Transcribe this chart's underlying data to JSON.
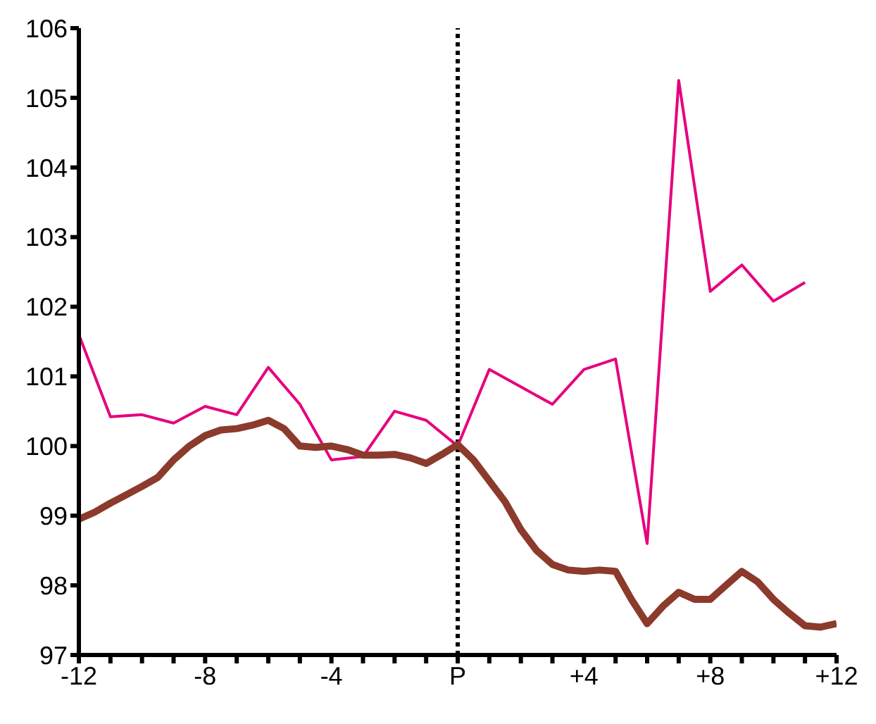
{
  "chart_data": {
    "type": "line",
    "grid": false,
    "legend": false,
    "marker": "none",
    "xlim": [
      -12,
      12
    ],
    "xticks": [
      {
        "value": -12,
        "label": "-12"
      },
      {
        "value": -11,
        "label": null
      },
      {
        "value": -10,
        "label": null
      },
      {
        "value": -9,
        "label": null
      },
      {
        "value": -8,
        "label": "-8"
      },
      {
        "value": -7,
        "label": null
      },
      {
        "value": -6,
        "label": null
      },
      {
        "value": -5,
        "label": null
      },
      {
        "value": -4,
        "label": "-4"
      },
      {
        "value": -3,
        "label": null
      },
      {
        "value": -2,
        "label": null
      },
      {
        "value": -1,
        "label": null
      },
      {
        "value": 0,
        "label": "P"
      },
      {
        "value": 1,
        "label": null
      },
      {
        "value": 2,
        "label": null
      },
      {
        "value": 3,
        "label": null
      },
      {
        "value": 4,
        "label": "+4"
      },
      {
        "value": 5,
        "label": null
      },
      {
        "value": 6,
        "label": null
      },
      {
        "value": 7,
        "label": null
      },
      {
        "value": 8,
        "label": "+8"
      },
      {
        "value": 9,
        "label": null
      },
      {
        "value": 10,
        "label": null
      },
      {
        "value": 11,
        "label": null
      },
      {
        "value": 12,
        "label": "+12"
      }
    ],
    "ylim": [
      97,
      106
    ],
    "yticks": [
      97,
      98,
      99,
      100,
      101,
      102,
      103,
      104,
      105,
      106
    ],
    "ref_lines": [
      {
        "axis": "x",
        "value": 0,
        "color": "#000000",
        "line_style": "dotted"
      }
    ],
    "series": [
      {
        "color": "#e6007e",
        "line_style": "solid",
        "x": [
          -12,
          -11,
          -10,
          -9,
          -8,
          -7,
          -6,
          -5,
          -4,
          -3,
          -2,
          -1,
          0,
          1,
          2,
          3,
          4,
          5,
          6,
          7,
          8,
          9,
          10,
          11
        ],
        "values": [
          101.6,
          100.42,
          100.45,
          100.33,
          100.57,
          100.45,
          101.13,
          100.6,
          99.8,
          99.85,
          100.5,
          100.37,
          100.0,
          101.1,
          100.85,
          100.6,
          101.1,
          101.25,
          98.6,
          105.25,
          102.22,
          102.6,
          102.08,
          102.35
        ]
      },
      {
        "color": "#8b3a2b",
        "line_style": "solid",
        "x": [
          -12,
          -11.5,
          -11,
          -10.5,
          -10,
          -9.5,
          -9,
          -8.5,
          -8,
          -7.5,
          -7,
          -6.5,
          -6,
          -5.5,
          -5,
          -4.5,
          -4,
          -3.5,
          -3,
          -2.5,
          -2,
          -1.5,
          -1,
          -0.5,
          0,
          0.5,
          1,
          1.5,
          2,
          2.5,
          3,
          3.5,
          4,
          4.5,
          5,
          5.5,
          6,
          6.5,
          7,
          7.5,
          8,
          8.5,
          9,
          9.5,
          10,
          10.5,
          11,
          11.5,
          12
        ],
        "values": [
          98.95,
          99.05,
          99.18,
          99.3,
          99.42,
          99.55,
          99.8,
          100.0,
          100.15,
          100.23,
          100.25,
          100.3,
          100.37,
          100.25,
          100.0,
          99.98,
          100.0,
          99.95,
          99.87,
          99.87,
          99.88,
          99.83,
          99.75,
          99.88,
          100.02,
          99.8,
          99.5,
          99.2,
          98.8,
          98.5,
          98.3,
          98.22,
          98.2,
          98.22,
          98.2,
          97.8,
          97.45,
          97.7,
          97.9,
          97.8,
          97.8,
          98.0,
          98.2,
          98.05,
          97.8,
          97.6,
          97.42,
          97.4,
          97.45
        ]
      }
    ]
  }
}
